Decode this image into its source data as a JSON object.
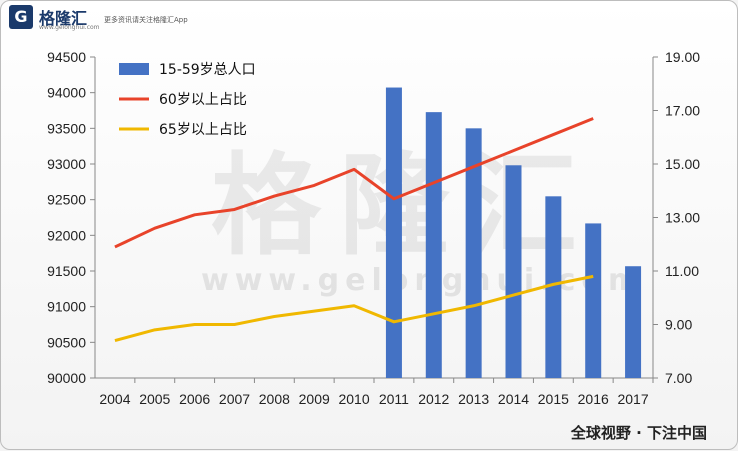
{
  "brand": {
    "logo_letter": "G",
    "name": "格隆汇",
    "url": "www.gelonghui.com",
    "tagline": "更多资讯请关注格隆汇App"
  },
  "watermark": {
    "text": "格隆汇",
    "url": "www.gelonghui.com"
  },
  "footer": {
    "tag": "全球视野 · 下注中国"
  },
  "chart_data": {
    "type": "bar+line",
    "categories": [
      "2004",
      "2005",
      "2006",
      "2007",
      "2008",
      "2009",
      "2010",
      "2011",
      "2012",
      "2013",
      "2014",
      "2015",
      "2016",
      "2017"
    ],
    "bar_series": {
      "name": "15-59岁总人口",
      "axis": "left",
      "color": "#4472c4",
      "values": [
        null,
        null,
        null,
        null,
        null,
        null,
        null,
        94072,
        93727,
        93500,
        92982,
        92547,
        92167,
        91567
      ]
    },
    "line_series": [
      {
        "name": "60岁以上占比",
        "axis": "right",
        "color": "#e8432a",
        "values": [
          11.9,
          12.6,
          13.1,
          13.3,
          13.8,
          14.2,
          14.8,
          13.7,
          14.3,
          14.9,
          15.5,
          16.1,
          16.7,
          null
        ]
      },
      {
        "name": "65岁以上占比",
        "axis": "right",
        "color": "#f0b800",
        "values": [
          8.4,
          8.8,
          9.0,
          9.0,
          9.3,
          9.5,
          9.7,
          9.1,
          9.4,
          9.7,
          10.1,
          10.5,
          10.8,
          null
        ]
      }
    ],
    "left_axis": {
      "ylim": [
        90000,
        94500
      ],
      "ticks": [
        "90000",
        "90500",
        "91000",
        "91500",
        "92000",
        "92500",
        "93000",
        "93500",
        "94000",
        "94500"
      ]
    },
    "right_axis": {
      "ylim": [
        7.0,
        19.0
      ],
      "ticks": [
        "7.00",
        "9.00",
        "11.00",
        "13.00",
        "15.00",
        "17.00",
        "19.00"
      ]
    },
    "legend": "top-left",
    "grid": false
  }
}
